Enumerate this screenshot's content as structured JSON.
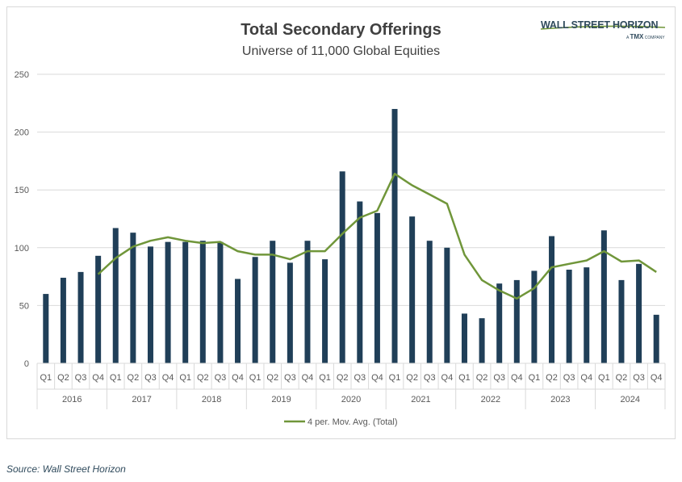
{
  "logo": {
    "name": "WALL STREET HORIZON",
    "tagline_prefix": "A",
    "tagline_brand": "TMX",
    "tagline_suffix": "COMPANY"
  },
  "source": "Source: Wall Street Horizon",
  "colors": {
    "bars": "#203f58",
    "line": "#70963a",
    "grid": "#d9d9d9",
    "text": "#595959"
  },
  "chart_data": {
    "type": "bar",
    "title": "Total Secondary Offerings",
    "subtitle": "Universe of 11,000 Global Equities",
    "ylim": [
      0,
      250
    ],
    "yticks": [
      0,
      50,
      100,
      150,
      200,
      250
    ],
    "grid": true,
    "legend_position": "bottom",
    "quarters": [
      "Q1",
      "Q2",
      "Q3",
      "Q4"
    ],
    "years": [
      "2016",
      "2017",
      "2018",
      "2019",
      "2020",
      "2021",
      "2022",
      "2023",
      "2024"
    ],
    "series": [
      {
        "name": "Total",
        "type": "bar",
        "values": [
          60,
          74,
          79,
          93,
          117,
          113,
          101,
          105,
          105,
          106,
          105,
          73,
          92,
          106,
          87,
          106,
          90,
          166,
          140,
          130,
          220,
          127,
          106,
          100,
          43,
          39,
          69,
          72,
          80,
          110,
          81,
          83,
          115,
          72,
          86,
          42
        ]
      },
      {
        "name": "4 per. Mov. Avg. (Total)",
        "type": "line",
        "values": [
          null,
          null,
          null,
          77,
          91,
          101,
          106,
          109,
          106,
          104,
          105,
          97,
          94,
          94,
          90,
          97,
          97,
          112,
          126,
          132,
          164,
          154,
          146,
          138,
          94,
          72,
          63,
          56,
          65,
          83,
          86,
          89,
          97,
          88,
          89,
          79
        ]
      }
    ]
  }
}
